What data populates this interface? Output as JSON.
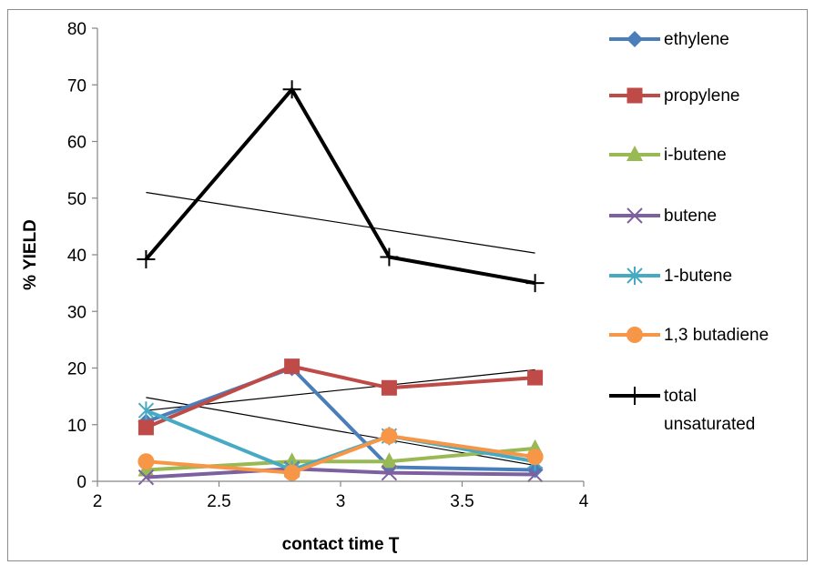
{
  "chart_data": {
    "type": "line",
    "xlabel": "contact time ",
    "xlabel_symbol": "Ʈ",
    "ylabel": "% YIELD",
    "xlim": [
      2,
      4
    ],
    "ylim": [
      0,
      80
    ],
    "x_ticks": [
      "2",
      "2.5",
      "3",
      "3.5",
      "4"
    ],
    "x_tick_values": [
      2,
      2.5,
      3,
      3.5,
      4
    ],
    "y_ticks": [
      "0",
      "10",
      "20",
      "30",
      "40",
      "50",
      "60",
      "70",
      "80"
    ],
    "y_tick_values": [
      0,
      10,
      20,
      30,
      40,
      50,
      60,
      70,
      80
    ],
    "grid": false,
    "legend_position": "right",
    "x": [
      2.2,
      2.8,
      3.2,
      3.8
    ],
    "series": [
      {
        "name": "ethylene",
        "values": [
          10.5,
          20,
          2.5,
          2
        ],
        "color": "#4a7ebb",
        "marker": "diamond"
      },
      {
        "name": "propylene",
        "values": [
          9.5,
          20.3,
          16.5,
          18.3
        ],
        "color": "#be4b48",
        "marker": "square"
      },
      {
        "name": "i-butene",
        "values": [
          2,
          3.5,
          3.5,
          5.8
        ],
        "color": "#98b954",
        "marker": "triangle"
      },
      {
        "name": "butene",
        "values": [
          0.7,
          2.2,
          1.5,
          1.2
        ],
        "color": "#7d60a0",
        "marker": "x"
      },
      {
        "name": "1-butene",
        "values": [
          12.5,
          2,
          8,
          3.5
        ],
        "color": "#46aac5",
        "marker": "star"
      },
      {
        "name": "1,3 butadiene",
        "values": [
          3.5,
          1.5,
          8,
          4.3
        ],
        "color": "#f79646",
        "marker": "circle"
      },
      {
        "name_lines": [
          "total",
          "unsaturated"
        ],
        "values": [
          39.2,
          69.2,
          39.6,
          35
        ],
        "color": "#000000",
        "marker": "plus"
      }
    ],
    "trendlines": [
      {
        "from": [
          2.2,
          51
        ],
        "to": [
          3.8,
          40.3
        ]
      },
      {
        "from": [
          2.2,
          12.5
        ],
        "to": [
          3.8,
          19.7
        ]
      },
      {
        "from": [
          2.2,
          14.8
        ],
        "to": [
          3.8,
          2.8
        ]
      }
    ]
  }
}
